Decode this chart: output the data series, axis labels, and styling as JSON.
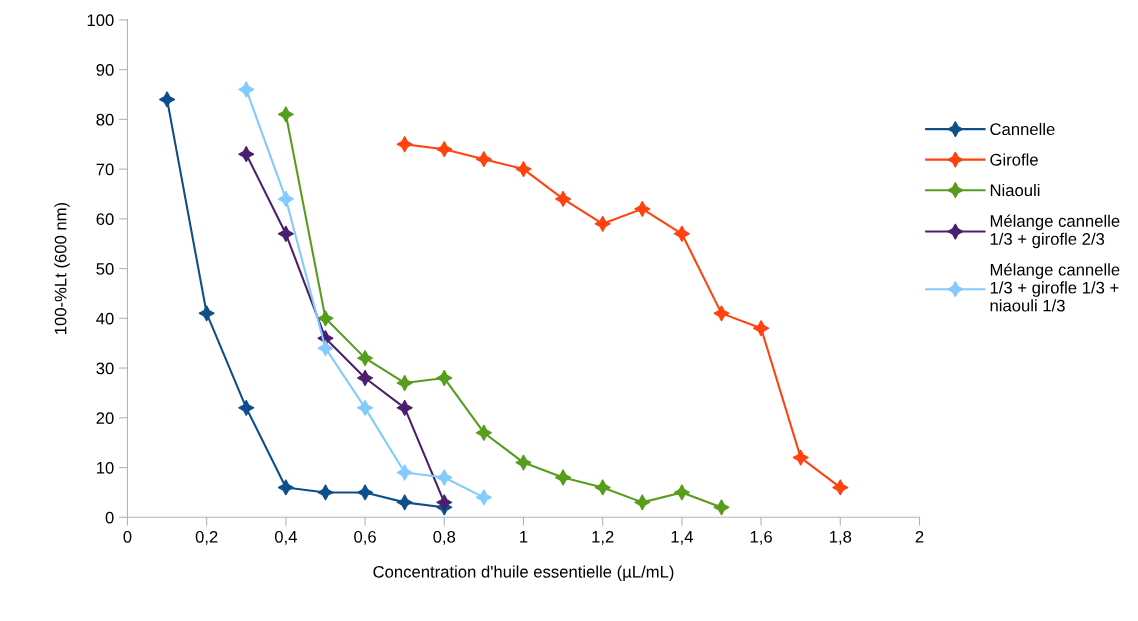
{
  "chart_data": {
    "type": "line",
    "xlabel": "Concentration d'huile essentielle (µL/mL)",
    "ylabel": "100-%Lt (600 nm)",
    "xlim": [
      0,
      2
    ],
    "ylim": [
      0,
      100
    ],
    "xticks": [
      0,
      {
        "value": 0.2,
        "label": "0,2"
      },
      {
        "value": 0.4,
        "label": "0,4"
      },
      {
        "value": 0.6,
        "label": "0,6"
      },
      {
        "value": 0.8,
        "label": "0,8"
      },
      1,
      {
        "value": 1.2,
        "label": "1,2"
      },
      {
        "value": 1.4,
        "label": "1,4"
      },
      {
        "value": 1.6,
        "label": "1,6"
      },
      {
        "value": 1.8,
        "label": "1,8"
      },
      2
    ],
    "yticks": [
      0,
      10,
      20,
      30,
      40,
      50,
      60,
      70,
      80,
      90,
      100
    ],
    "grid": false,
    "legend": "right",
    "marker": "star",
    "line_style": "solid",
    "series": [
      {
        "name": "Cannelle",
        "color": "#0d4f8b",
        "x": [
          0.1,
          0.2,
          0.3,
          0.4,
          0.5,
          0.6,
          0.7,
          0.8
        ],
        "values": [
          84,
          41,
          22,
          6,
          5,
          5,
          3,
          2
        ]
      },
      {
        "name": "Girofle",
        "color": "#ff420e",
        "x": [
          0.7,
          0.8,
          0.9,
          1.0,
          1.1,
          1.2,
          1.3,
          1.4,
          1.5,
          1.6,
          1.7,
          1.8
        ],
        "values": [
          75,
          74,
          72,
          70,
          64,
          59,
          62,
          57,
          41,
          38,
          12,
          6
        ]
      },
      {
        "name": "Niaouli",
        "color": "#579d1c",
        "x": [
          0.4,
          0.5,
          0.6,
          0.7,
          0.8,
          0.9,
          1.0,
          1.1,
          1.2,
          1.3,
          1.4,
          1.5
        ],
        "values": [
          81,
          40,
          32,
          27,
          28,
          17,
          11,
          8,
          6,
          3,
          5,
          2
        ]
      },
      {
        "name": "Mélange cannelle\n1/3 + girofle 2/3",
        "color": "#4b1f6f",
        "x": [
          0.3,
          0.4,
          0.5,
          0.6,
          0.7,
          0.8
        ],
        "values": [
          73,
          57,
          36,
          28,
          22,
          3
        ]
      },
      {
        "name": "Mélange cannelle\n1/3 + girofle 1/3 +\nniaouli 1/3",
        "color": "#83caff",
        "x": [
          0.3,
          0.4,
          0.5,
          0.6,
          0.7,
          0.8,
          0.9
        ],
        "values": [
          86,
          64,
          34,
          22,
          9,
          8,
          4
        ]
      }
    ]
  }
}
